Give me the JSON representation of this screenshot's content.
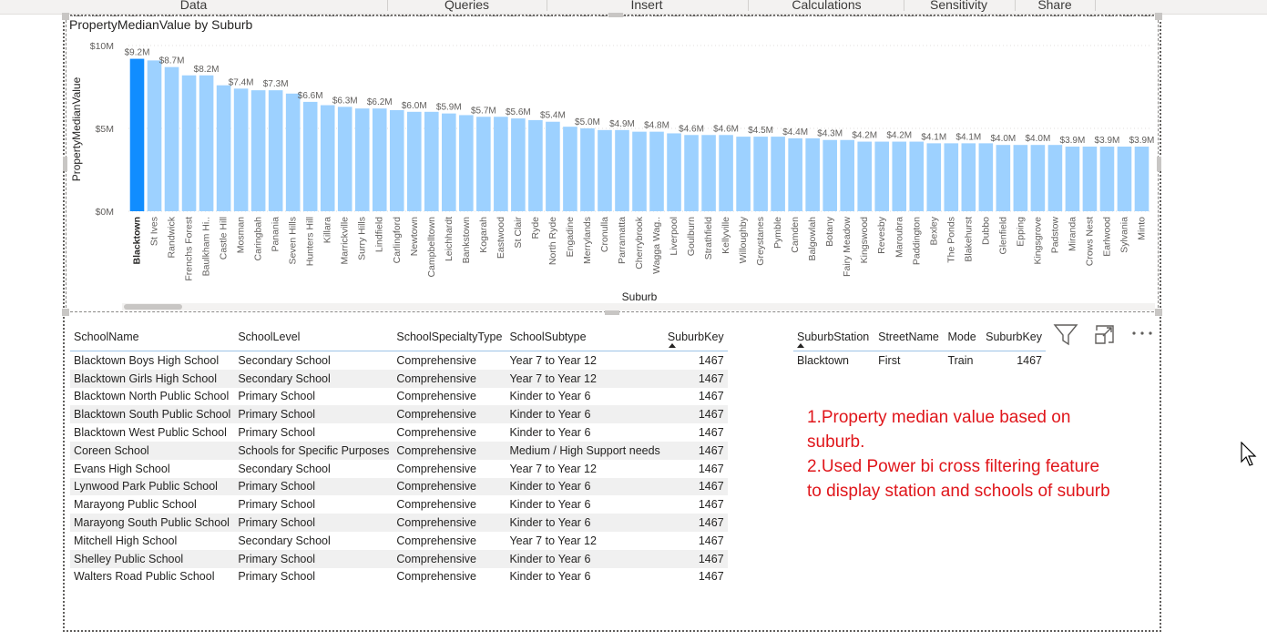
{
  "ribbon": {
    "tabs": [
      "Data",
      "Queries",
      "Insert",
      "Calculations",
      "Sensitivity",
      "Share"
    ]
  },
  "chart_data": {
    "type": "bar",
    "title": "PropertyMedianValue by Suburb",
    "xlabel": "Suburb",
    "ylabel": "PropertyMedianValue",
    "ylim": [
      0,
      10
    ],
    "yticks": [
      "$0M",
      "$5M",
      "$10M"
    ],
    "unit": "millions AUD",
    "highlight_color": "#118dff",
    "bar_color": "#9dd1ff",
    "highlighted_category": "Blacktown",
    "categories": [
      "Blacktown",
      "St Ives",
      "Randwick",
      "Frenchs Forest",
      "Baulkham Hi..",
      "Castle Hill",
      "Mosman",
      "Caringbah",
      "Panania",
      "Seven Hills",
      "Hunters Hill",
      "Killara",
      "Marrickville",
      "Surry Hills",
      "Lindfield",
      "Carlingford",
      "Newtown",
      "Campbelltown",
      "Leichhardt",
      "Bankstown",
      "Kogarah",
      "Eastwood",
      "St Clair",
      "Ryde",
      "North Ryde",
      "Engadine",
      "Merrylands",
      "Cronulla",
      "Parramatta",
      "Cherrybrook",
      "Wagga Wag..",
      "Liverpool",
      "Goulburn",
      "Strathfield",
      "Kellyville",
      "Willoughby",
      "Greystanes",
      "Pymble",
      "Camden",
      "Balgowlah",
      "Botany",
      "Fairy Meadow",
      "Kingswood",
      "Revesby",
      "Maroubra",
      "Paddington",
      "Bexley",
      "The Ponds",
      "Blakehurst",
      "Dubbo",
      "Glenfield",
      "Epping",
      "Kingsgrove",
      "Padstow",
      "Miranda",
      "Crows Nest",
      "Earlwood",
      "Sylvania",
      "Minto"
    ],
    "values": [
      9.2,
      9.1,
      8.7,
      8.2,
      8.2,
      7.6,
      7.4,
      7.3,
      7.3,
      7.1,
      6.6,
      6.4,
      6.3,
      6.2,
      6.2,
      6.1,
      6.0,
      6.0,
      5.9,
      5.8,
      5.7,
      5.7,
      5.6,
      5.5,
      5.4,
      5.1,
      5.0,
      4.9,
      4.9,
      4.8,
      4.8,
      4.7,
      4.6,
      4.6,
      4.6,
      4.5,
      4.5,
      4.5,
      4.4,
      4.4,
      4.3,
      4.3,
      4.2,
      4.2,
      4.2,
      4.2,
      4.1,
      4.1,
      4.1,
      4.1,
      4.0,
      4.0,
      4.0,
      4.0,
      3.9,
      3.9,
      3.9,
      3.9,
      3.9
    ],
    "data_labels": {
      "0": "$9.2M",
      "2": "$8.7M",
      "4": "$8.2M",
      "6": "$7.4M",
      "8": "$7.3M",
      "10": "$6.6M",
      "12": "$6.3M",
      "14": "$6.2M",
      "16": "$6.0M",
      "18": "$5.9M",
      "20": "$5.7M",
      "22": "$5.6M",
      "24": "$5.4M",
      "26": "$5.0M",
      "28": "$4.9M",
      "30": "$4.8M",
      "32": "$4.6M",
      "34": "$4.6M",
      "36": "$4.5M",
      "38": "$4.4M",
      "40": "$4.3M",
      "42": "$4.2M",
      "44": "$4.2M",
      "46": "$4.1M",
      "48": "$4.1M",
      "50": "$4.0M",
      "52": "$4.0M",
      "54": "$3.9M",
      "56": "$3.9M",
      "58": "$3.9M"
    }
  },
  "schools_table": {
    "headers": [
      "SchoolName",
      "SchoolLevel",
      "SchoolSpecialtyType",
      "SchoolSubtype",
      "SuburbKey"
    ],
    "rows": [
      [
        "Blacktown Boys High School",
        "Secondary School",
        "Comprehensive",
        "Year 7 to Year 12",
        "1467"
      ],
      [
        "Blacktown Girls High School",
        "Secondary School",
        "Comprehensive",
        "Year 7 to Year 12",
        "1467"
      ],
      [
        "Blacktown North Public School",
        "Primary School",
        "Comprehensive",
        "Kinder to Year 6",
        "1467"
      ],
      [
        "Blacktown South Public School",
        "Primary School",
        "Comprehensive",
        "Kinder to Year 6",
        "1467"
      ],
      [
        "Blacktown West Public School",
        "Primary School",
        "Comprehensive",
        "Kinder to Year 6",
        "1467"
      ],
      [
        "Coreen School",
        "Schools for Specific Purposes",
        "Comprehensive",
        "Medium / High Support needs",
        "1467"
      ],
      [
        "Evans High School",
        "Secondary School",
        "Comprehensive",
        "Year 7 to Year 12",
        "1467"
      ],
      [
        "Lynwood Park Public School",
        "Primary School",
        "Comprehensive",
        "Kinder to Year 6",
        "1467"
      ],
      [
        "Marayong Public School",
        "Primary School",
        "Comprehensive",
        "Kinder to Year 6",
        "1467"
      ],
      [
        "Marayong South Public School",
        "Primary School",
        "Comprehensive",
        "Kinder to Year 6",
        "1467"
      ],
      [
        "Mitchell High School",
        "Secondary School",
        "Comprehensive",
        "Year 7 to Year 12",
        "1467"
      ],
      [
        "Shelley Public School",
        "Primary School",
        "Comprehensive",
        "Kinder to Year 6",
        "1467"
      ],
      [
        "Walters Road Public School",
        "Primary School",
        "Comprehensive",
        "Kinder to Year 6",
        "1467"
      ]
    ]
  },
  "station_table": {
    "headers": [
      "SuburbStation",
      "StreetName",
      "Mode",
      "SuburbKey"
    ],
    "rows": [
      [
        "Blacktown",
        "First",
        "Train",
        "1467"
      ]
    ]
  },
  "visual_toolbar": {
    "icons": [
      "filter-icon",
      "focus-mode-icon",
      "more-options-icon"
    ]
  },
  "annotation": {
    "lines": [
      "1.Property median value based on",
      "suburb.",
      "2.Used Power bi cross filtering feature",
      "to display station and schools of suburb"
    ],
    "color": "#e0161b"
  }
}
